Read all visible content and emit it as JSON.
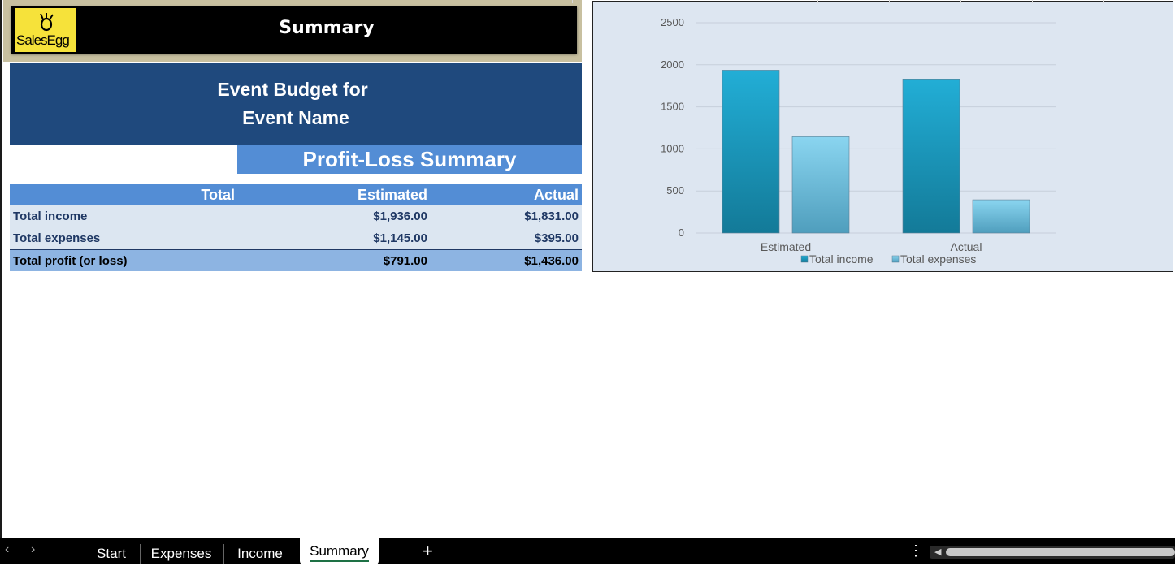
{
  "header": {
    "logo_text": "SalesEgg",
    "title": "Summary"
  },
  "event": {
    "line1": "Event Budget for",
    "line2": "Event Name"
  },
  "section_title": "Profit-Loss Summary",
  "table": {
    "headers": {
      "label": "Total",
      "estimated": "Estimated",
      "actual": "Actual"
    },
    "rows": [
      {
        "label": "Total income",
        "estimated": "$1,936.00",
        "actual": "$1,831.00"
      },
      {
        "label": "Total expenses",
        "estimated": "$1,145.00",
        "actual": "$395.00"
      }
    ],
    "total": {
      "label": "Total profit (or loss)",
      "estimated": "$791.00",
      "actual": "$1,436.00"
    }
  },
  "chart_data": {
    "type": "bar",
    "categories": [
      "Estimated",
      "Actual"
    ],
    "series": [
      {
        "name": "Total income",
        "values": [
          1936,
          1831
        ],
        "color": "#1fa7cf"
      },
      {
        "name": "Total expenses",
        "values": [
          1145,
          395
        ],
        "color": "#7fcde9"
      }
    ],
    "yticks": [
      "0",
      "500",
      "1000",
      "1500",
      "2000",
      "2500"
    ],
    "ylim": [
      0,
      2500
    ],
    "grid": true,
    "legend": "bottom"
  },
  "sheet_tabs": {
    "tabs": [
      "Start",
      "Expenses",
      "Income",
      "Summary"
    ],
    "active": "Summary",
    "add_symbol": "+",
    "more_symbol": "⋮",
    "prev_symbol": "‹",
    "next_symbol": "›"
  }
}
